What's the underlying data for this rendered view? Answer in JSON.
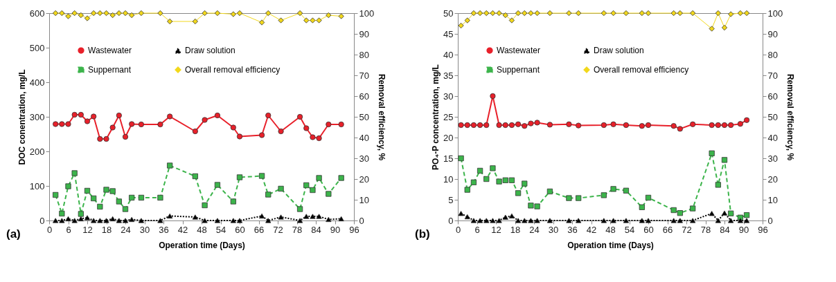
{
  "chart_data": [
    {
      "type": "line",
      "xlabel": "Operation time (Days)",
      "ylabel": "DOC conentration, mg/L",
      "y2label": "Removal efficiency, %",
      "annotations": [
        "(a)"
      ],
      "legend": "top",
      "grid": false,
      "x": [
        2,
        4,
        6,
        8,
        10,
        12,
        14,
        16,
        18,
        20,
        22,
        24,
        26,
        29,
        35,
        38,
        46,
        49,
        53,
        58,
        60,
        67,
        69,
        73,
        79,
        81,
        83,
        85,
        88,
        92
      ],
      "xlim": [
        0,
        96
      ],
      "xticks": [
        0,
        6,
        12,
        18,
        24,
        30,
        36,
        42,
        48,
        54,
        60,
        66,
        72,
        78,
        84,
        90,
        96
      ],
      "ylim": [
        0,
        600
      ],
      "yticks": [
        0,
        100,
        200,
        300,
        400,
        500,
        600
      ],
      "y2lim": [
        0,
        100
      ],
      "y2ticks": [
        0,
        10,
        20,
        30,
        40,
        50,
        60,
        70,
        80,
        90,
        100
      ],
      "series": [
        {
          "name": "Wastewater",
          "color": "#e8202a",
          "marker": "circle",
          "line_style": "solid",
          "values": [
            279,
            279,
            279,
            306,
            306,
            287,
            301,
            236,
            236,
            269,
            304,
            242,
            279,
            278,
            278,
            301,
            258,
            291,
            304,
            269,
            243,
            247,
            304,
            258,
            300,
            267,
            241,
            238,
            278,
            278
          ]
        },
        {
          "name": "Suppernant",
          "color": "#3cb44b",
          "marker": "square",
          "line_style": "dashed",
          "values": [
            74,
            20,
            99,
            137,
            19,
            86,
            64,
            40,
            89,
            85,
            55,
            33,
            66,
            66,
            66,
            159,
            128,
            44,
            103,
            55,
            125,
            129,
            75,
            92,
            33,
            102,
            88,
            123,
            77,
            123
          ]
        },
        {
          "name": "Draw solution",
          "color": "#000000",
          "marker": "triangle",
          "line_style": "dotted",
          "values": [
            0,
            0,
            5,
            0,
            5,
            8,
            0,
            0,
            0,
            5,
            0,
            0,
            3,
            0,
            0,
            13,
            10,
            0,
            0,
            0,
            0,
            13,
            0,
            10,
            0,
            12,
            12,
            12,
            3,
            5
          ]
        },
        {
          "name": "Overall removal efficiency",
          "color": "#f2d81c",
          "marker": "diamond",
          "line_style": "solid",
          "axis": "y2",
          "values": [
            100,
            100,
            98.5,
            100,
            99,
            97.5,
            100,
            100,
            100,
            99,
            100,
            100,
            99,
            100,
            100,
            96,
            96,
            100,
            100,
            99.5,
            100,
            95.5,
            100,
            96.5,
            100,
            96.5,
            96.5,
            96.5,
            99,
            98.5
          ]
        }
      ]
    },
    {
      "type": "line",
      "xlabel": "Operation time (Days)",
      "ylabel": "PO₄-P  concentration, mg/L",
      "y2label": "Removal efficiency, %",
      "annotations": [
        "(b)"
      ],
      "legend": "top",
      "grid": false,
      "x": [
        1,
        3,
        5,
        7,
        9,
        11,
        13,
        15,
        17,
        19,
        21,
        23,
        25,
        29,
        35,
        38,
        46,
        49,
        53,
        58,
        60,
        68,
        70,
        74,
        80,
        82,
        84,
        86,
        89,
        91
      ],
      "xlim": [
        0,
        96
      ],
      "xticks": [
        0,
        6,
        12,
        18,
        24,
        30,
        36,
        42,
        48,
        54,
        60,
        66,
        72,
        78,
        84,
        90,
        96
      ],
      "ylim": [
        0,
        50
      ],
      "yticks": [
        0,
        5,
        10,
        15,
        20,
        25,
        30,
        35,
        40,
        45,
        50
      ],
      "y2lim": [
        0,
        100
      ],
      "y2ticks": [
        0,
        10,
        20,
        30,
        40,
        50,
        60,
        70,
        80,
        90,
        100
      ],
      "series": [
        {
          "name": "Wastewater",
          "color": "#e8202a",
          "marker": "circle",
          "line_style": "solid",
          "values": [
            23,
            23,
            23,
            23,
            23,
            30,
            23,
            23,
            23,
            23.2,
            22.8,
            23.4,
            23.6,
            23.1,
            23.2,
            22.9,
            23,
            23.2,
            23,
            22.8,
            23,
            22.8,
            22.1,
            23.2,
            23,
            23,
            23,
            23,
            23.3,
            24.2
          ]
        },
        {
          "name": "Suppernant",
          "color": "#3cb44b",
          "marker": "square",
          "line_style": "dashed",
          "values": [
            15,
            7.4,
            9.2,
            12,
            10,
            12.6,
            9.4,
            9.7,
            9.7,
            6.6,
            8.9,
            3.6,
            3.4,
            7,
            5.4,
            5.4,
            6.1,
            7.6,
            7.2,
            3.2,
            5.5,
            2.5,
            1.8,
            2.9,
            16.2,
            8.6,
            14.6,
            1.7,
            0.7,
            1.3
          ]
        },
        {
          "name": "Draw solution",
          "color": "#000000",
          "marker": "triangle",
          "line_style": "dotted",
          "values": [
            1.7,
            0.9,
            0,
            0,
            0,
            0,
            0,
            0.8,
            1.1,
            0,
            0,
            0,
            0,
            0,
            0,
            0,
            0,
            0,
            0,
            0,
            0,
            0,
            0,
            0,
            1.7,
            0,
            1.8,
            0,
            0,
            0
          ]
        },
        {
          "name": "Overall removal efficiency",
          "color": "#f2d81c",
          "marker": "diamond",
          "line_style": "solid",
          "axis": "y2",
          "values": [
            94,
            96.5,
            100,
            100,
            100,
            100,
            100,
            99,
            96.5,
            100,
            100,
            100,
            100,
            100,
            100,
            100,
            100,
            100,
            100,
            100,
            100,
            100,
            100,
            100,
            92.5,
            100,
            93,
            99.5,
            100,
            100
          ]
        }
      ]
    }
  ]
}
